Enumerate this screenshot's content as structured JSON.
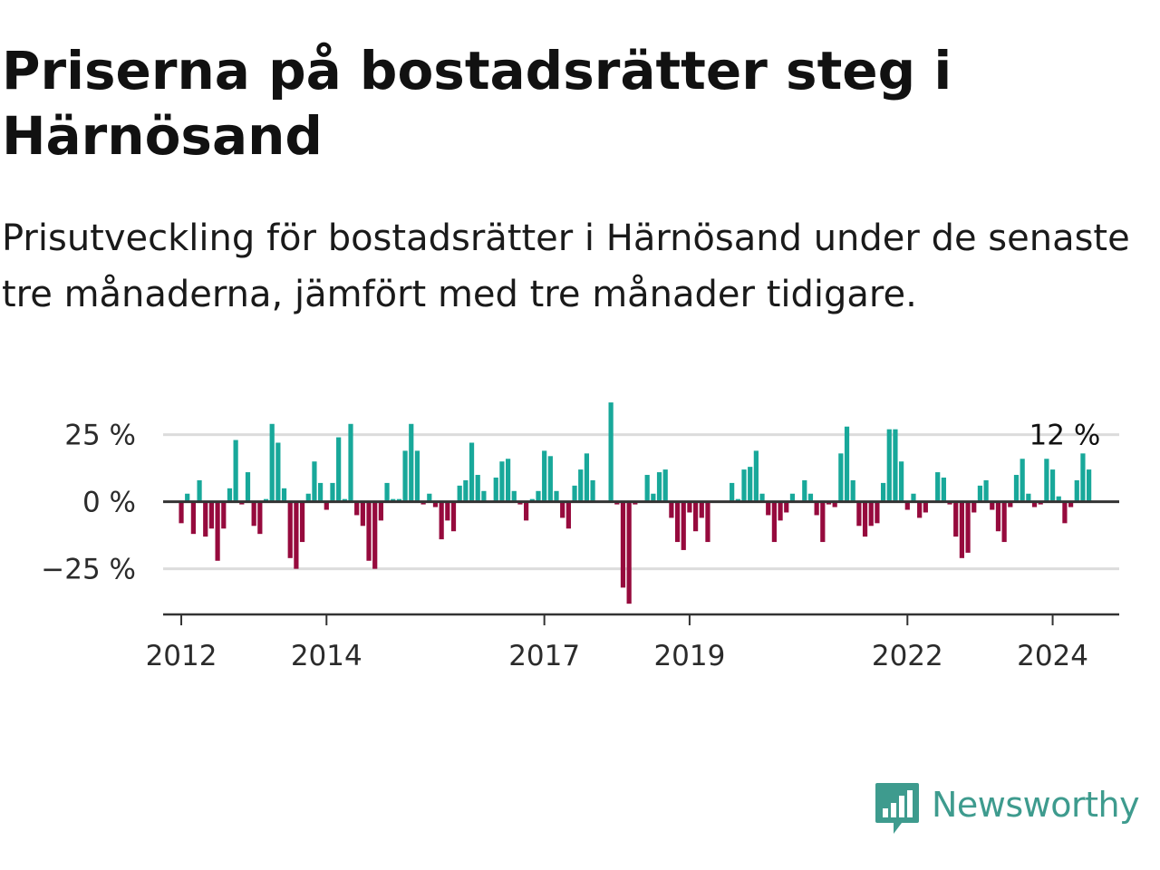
{
  "title": "Priserna på bostadsrätter steg i Härnösand",
  "subtitle": "Prisutveckling för bostadsrätter i Härnösand under de senaste tre månaderna, jämfört med tre månader tidigare.",
  "brand": {
    "name": "Newsworthy",
    "color": "#3e9b8e"
  },
  "colors": {
    "positive": "#18a89a",
    "negative": "#960a3d",
    "grid": "#dcdcdc",
    "axis": "#333333"
  },
  "chart_data": {
    "type": "bar",
    "title": "Priserna på bostadsrätter steg i Härnösand",
    "subtitle": "Prisutveckling för bostadsrätter i Härnösand under de senaste tre månaderna, jämfört med tre månader tidigare.",
    "unit": "%",
    "start": "2012-01",
    "xlim": [
      "2011-10",
      "2024-12"
    ],
    "x_ticks": [
      "2012",
      "2014",
      "2017",
      "2019",
      "2022",
      "2024"
    ],
    "ylim": [
      -42,
      35
    ],
    "y_ticks": [
      {
        "value": 25,
        "label": "25 %"
      },
      {
        "value": 0,
        "label": "0 %"
      },
      {
        "value": -25,
        "label": "−25 %"
      }
    ],
    "grid": true,
    "annotation": {
      "text": "12 %",
      "value": 12,
      "date": "2024-03"
    },
    "values": [
      -8,
      3,
      -12,
      8,
      -13,
      -10,
      -22,
      -10,
      5,
      23,
      -1,
      11,
      -9,
      -12,
      1,
      29,
      22,
      5,
      -21,
      -25,
      -15,
      3,
      15,
      7,
      -3,
      7,
      24,
      1,
      29,
      -5,
      -9,
      -22,
      -25,
      -7,
      7,
      1,
      1,
      19,
      29,
      19,
      -1,
      3,
      -2,
      -14,
      -7,
      -11,
      6,
      8,
      22,
      10,
      4,
      0,
      9,
      15,
      16,
      4,
      -1,
      -7,
      1,
      4,
      19,
      17,
      4,
      -6,
      -10,
      6,
      12,
      18,
      8,
      0,
      0,
      37,
      -1,
      -32,
      -38,
      -1,
      0,
      10,
      3,
      11,
      12,
      -6,
      -15,
      -18,
      -4,
      -11,
      -6,
      -15,
      0,
      0,
      0,
      7,
      1,
      12,
      13,
      19,
      3,
      -5,
      -15,
      -7,
      -4,
      3,
      0,
      8,
      3,
      -5,
      -15,
      -1,
      -2,
      18,
      28,
      8,
      -9,
      -13,
      -9,
      -8,
      7,
      27,
      27,
      15,
      -3,
      3,
      -6,
      -4,
      0,
      11,
      9,
      -1,
      -13,
      -21,
      -19,
      -4,
      6,
      8,
      -3,
      -11,
      -15,
      -2,
      10,
      16,
      3,
      -2,
      -1,
      16,
      12,
      2,
      -8,
      -2,
      8,
      18,
      12
    ]
  }
}
